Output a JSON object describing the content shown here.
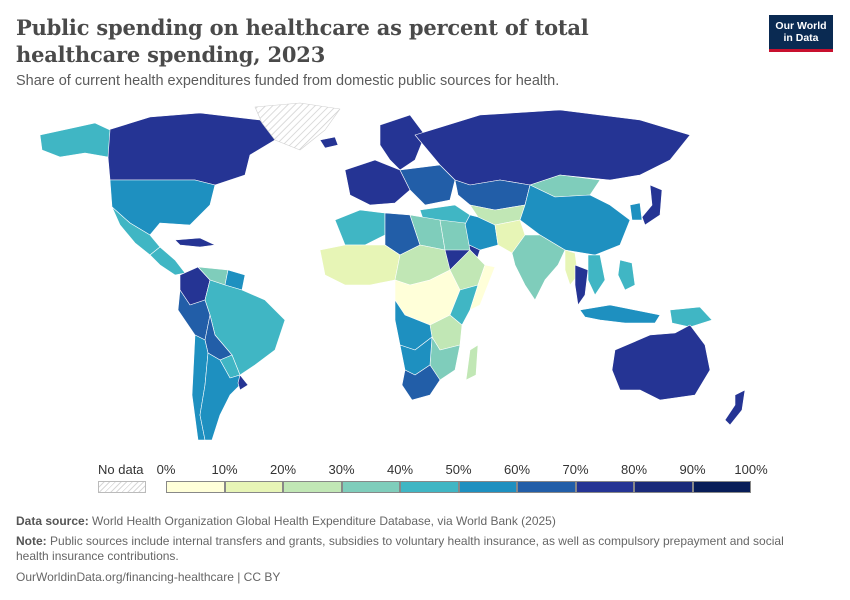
{
  "header": {
    "title": "Public spending on healthcare as percent of total healthcare spending, 2023",
    "subtitle": "Share of current health expenditures funded from domestic public sources for health.",
    "logo_line1": "Our World",
    "logo_line2": "in Data"
  },
  "legend": {
    "no_data_label": "No data",
    "bins": [
      "0%",
      "10%",
      "20%",
      "30%",
      "40%",
      "50%",
      "60%",
      "70%",
      "80%",
      "90%",
      "100%"
    ],
    "colors": [
      "#ffffd9",
      "#e7f5b6",
      "#c1e7b5",
      "#7fcdbb",
      "#40b6c4",
      "#1e90c0",
      "#225ea8",
      "#253494",
      "#1a2a7a",
      "#081d58"
    ],
    "no_data_color": "hatched-grey"
  },
  "footer": {
    "source_label": "Data source:",
    "source_text": "World Health Organization Global Health Expenditure Database, via World Bank (2025)",
    "note_label": "Note:",
    "note_text": "Public sources include internal transfers and grants, subsidies to voluntary health insurance, as well as compulsory prepayment and social health insurance contributions.",
    "credit": "OurWorldinData.org/financing-healthcare | CC BY"
  },
  "map_regions": [
    {
      "region": "canada",
      "color": "#253494"
    },
    {
      "region": "alaska",
      "color": "#40b6c4"
    },
    {
      "region": "greenland",
      "color": "no-data"
    },
    {
      "region": "usa",
      "color": "#1e90c0"
    },
    {
      "region": "mexico",
      "color": "#40b6c4"
    },
    {
      "region": "central-america",
      "color": "#40b6c4"
    },
    {
      "region": "caribbean",
      "color": "#253494"
    },
    {
      "region": "colombia",
      "color": "#253494"
    },
    {
      "region": "venezuela",
      "color": "#7fcdbb"
    },
    {
      "region": "guyanas",
      "color": "#1e90c0"
    },
    {
      "region": "brazil",
      "color": "#40b6c4"
    },
    {
      "region": "peru",
      "color": "#225ea8"
    },
    {
      "region": "bolivia",
      "color": "#225ea8"
    },
    {
      "region": "paraguay",
      "color": "#40b6c4"
    },
    {
      "region": "chile",
      "color": "#1e90c0"
    },
    {
      "region": "argentina",
      "color": "#1e90c0"
    },
    {
      "region": "uruguay",
      "color": "#253494"
    },
    {
      "region": "iceland",
      "color": "#253494"
    },
    {
      "region": "scandinavia",
      "color": "#253494"
    },
    {
      "region": "western-europe",
      "color": "#253494"
    },
    {
      "region": "eastern-europe",
      "color": "#225ea8"
    },
    {
      "region": "russia",
      "color": "#253494"
    },
    {
      "region": "kazakhstan",
      "color": "#225ea8"
    },
    {
      "region": "central-asia",
      "color": "#c1e7b5"
    },
    {
      "region": "mongolia",
      "color": "#7fcdbb"
    },
    {
      "region": "china",
      "color": "#1e90c0"
    },
    {
      "region": "japan",
      "color": "#253494"
    },
    {
      "region": "korea",
      "color": "#1e90c0"
    },
    {
      "region": "middle-east",
      "color": "#40b6c4"
    },
    {
      "region": "saudi-arabia",
      "color": "#253494"
    },
    {
      "region": "iran",
      "color": "#1e90c0"
    },
    {
      "region": "afghanistan-pakistan",
      "color": "#e7f5b6"
    },
    {
      "region": "india",
      "color": "#7fcdbb"
    },
    {
      "region": "myanmar",
      "color": "#e7f5b6"
    },
    {
      "region": "thailand",
      "color": "#253494"
    },
    {
      "region": "indochina",
      "color": "#40b6c4"
    },
    {
      "region": "indonesia",
      "color": "#1e90c0"
    },
    {
      "region": "philippines",
      "color": "#40b6c4"
    },
    {
      "region": "png",
      "color": "#40b6c4"
    },
    {
      "region": "australia",
      "color": "#253494"
    },
    {
      "region": "new-zealand",
      "color": "#253494"
    },
    {
      "region": "north-africa",
      "color": "#40b6c4"
    },
    {
      "region": "algeria",
      "color": "#225ea8"
    },
    {
      "region": "libya",
      "color": "#7fcdbb"
    },
    {
      "region": "egypt",
      "color": "#7fcdbb"
    },
    {
      "region": "west-africa",
      "color": "#e7f5b6"
    },
    {
      "region": "sahel",
      "color": "#c1e7b5"
    },
    {
      "region": "central-africa",
      "color": "#ffffd9"
    },
    {
      "region": "east-africa",
      "color": "#c1e7b5"
    },
    {
      "region": "ethiopia",
      "color": "#c1e7b5"
    },
    {
      "region": "somalia",
      "color": "#ffffd9"
    },
    {
      "region": "kenya",
      "color": "#40b6c4"
    },
    {
      "region": "angola",
      "color": "#1e90c0"
    },
    {
      "region": "southern-africa",
      "color": "#7fcdbb"
    },
    {
      "region": "namibia-botswana",
      "color": "#1e90c0"
    },
    {
      "region": "south-africa",
      "color": "#225ea8"
    },
    {
      "region": "madagascar",
      "color": "#c1e7b5"
    }
  ]
}
